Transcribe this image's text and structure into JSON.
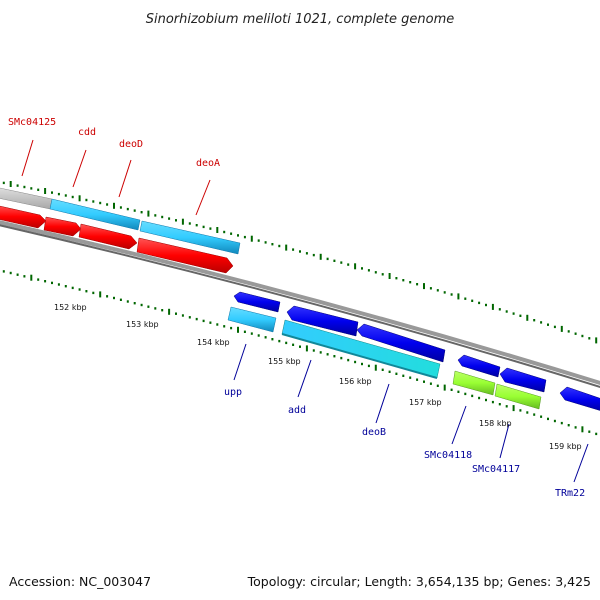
{
  "title": "Sinorhizobium meliloti 1021, complete genome",
  "footer": {
    "accession": "Accession: NC_003047",
    "topology": "Topology: circular; Length: 3,654,135 bp; Genes: 3,425"
  },
  "colors": {
    "forward_cds": "#ff0000",
    "reverse_cds": "#0000ee",
    "rna_gene": "#33ccff",
    "other_gene": "#99ff33",
    "backbone": "#888888",
    "ticks": "#006600",
    "forward_label": "#cc0000",
    "reverse_label": "#000099"
  },
  "kbp_labels": [
    "152 kbp",
    "153 kbp",
    "154 kbp",
    "155 kbp",
    "156 kbp",
    "157 kbp",
    "158 kbp",
    "159 kbp"
  ],
  "forward_labels": [
    "SMc04125",
    "cdd",
    "deoD",
    "deoA"
  ],
  "reverse_labels": [
    "upp",
    "add",
    "deoB",
    "SMc04118",
    "SMc04117",
    "TRm22"
  ]
}
